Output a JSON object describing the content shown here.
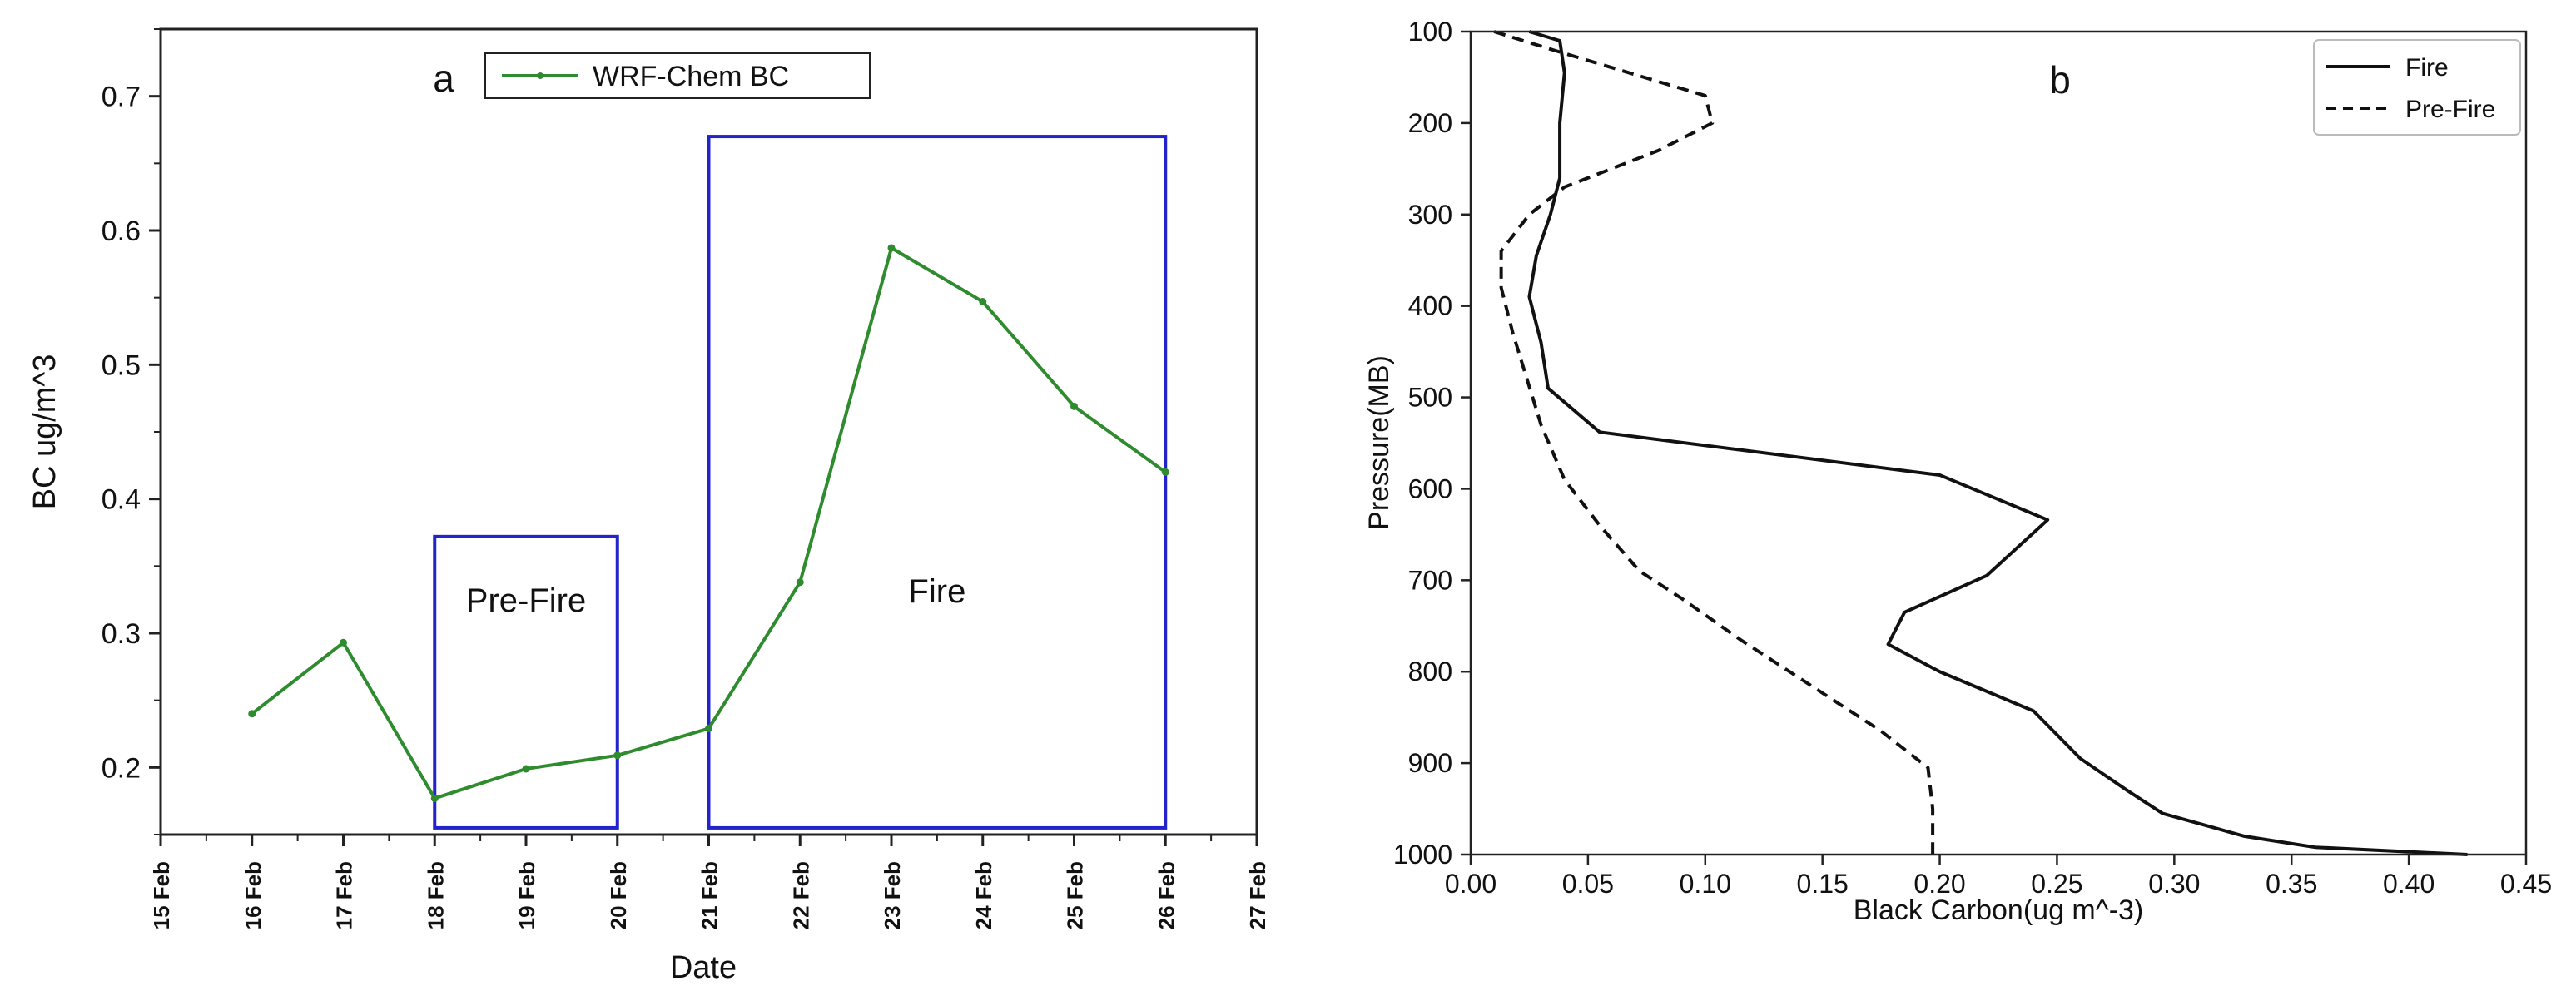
{
  "chart_data": [
    {
      "panel_label": "a",
      "type": "line",
      "xlabel": "Date",
      "ylabel": "BC ug/m^3",
      "ylim": [
        0.15,
        0.75
      ],
      "y_ticks": [
        "0.2",
        "0.3",
        "0.4",
        "0.5",
        "0.6",
        "0.7"
      ],
      "categories": [
        "15 Feb",
        "16 Feb",
        "17 Feb",
        "18 Feb",
        "19 Feb",
        "20 Feb",
        "21 Feb",
        "22 Feb",
        "23 Feb",
        "24 Feb",
        "25 Feb",
        "26 Feb",
        "27 Feb"
      ],
      "series": [
        {
          "name": "WRF-Chem BC",
          "color": "#2e8b2e",
          "x": [
            "16 Feb",
            "17 Feb",
            "18 Feb",
            "19 Feb",
            "20 Feb",
            "21 Feb",
            "22 Feb",
            "23 Feb",
            "24 Feb",
            "25 Feb",
            "26 Feb"
          ],
          "values": [
            0.24,
            0.293,
            0.177,
            0.199,
            0.209,
            0.229,
            0.338,
            0.587,
            0.547,
            0.469,
            0.42
          ]
        }
      ],
      "annotations": [
        {
          "label": "Pre-Fire",
          "x_range": [
            "18 Feb",
            "20 Feb"
          ],
          "y_range": [
            0.155,
            0.372
          ],
          "color": "#2323cc"
        },
        {
          "label": "Fire",
          "x_range": [
            "21 Feb",
            "26 Feb"
          ],
          "y_range": [
            0.155,
            0.67
          ],
          "color": "#2323cc"
        }
      ],
      "legend_position": "top-center",
      "grid": false
    },
    {
      "panel_label": "b",
      "type": "line",
      "xlabel": "Black Carbon(ug m^-3)",
      "ylabel": "Pressure(MB)",
      "xlim": [
        0.0,
        0.45
      ],
      "ylim": [
        1000,
        100
      ],
      "x_ticks": [
        "0.00",
        "0.05",
        "0.10",
        "0.15",
        "0.20",
        "0.25",
        "0.30",
        "0.35",
        "0.40",
        "0.45"
      ],
      "y_ticks": [
        "100",
        "200",
        "300",
        "400",
        "500",
        "600",
        "700",
        "800",
        "900",
        "1000"
      ],
      "y_inverted": true,
      "series": [
        {
          "name": "Fire",
          "style": "solid",
          "points": [
            [
              0.025,
              100
            ],
            [
              0.038,
              110
            ],
            [
              0.04,
              145
            ],
            [
              0.038,
              200
            ],
            [
              0.038,
              260
            ],
            [
              0.034,
              300
            ],
            [
              0.028,
              345
            ],
            [
              0.025,
              390
            ],
            [
              0.03,
              440
            ],
            [
              0.033,
              490
            ],
            [
              0.055,
              538
            ],
            [
              0.2,
              585
            ],
            [
              0.246,
              634
            ],
            [
              0.22,
              695
            ],
            [
              0.185,
              735
            ],
            [
              0.178,
              770
            ],
            [
              0.2,
              800
            ],
            [
              0.24,
              843
            ],
            [
              0.26,
              895
            ],
            [
              0.28,
              930
            ],
            [
              0.295,
              955
            ],
            [
              0.33,
              980
            ],
            [
              0.36,
              992
            ],
            [
              0.425,
              1000
            ]
          ]
        },
        {
          "name": "Pre-Fire",
          "style": "dashed",
          "points": [
            [
              0.01,
              100
            ],
            [
              0.035,
              120
            ],
            [
              0.1,
              170
            ],
            [
              0.103,
              200
            ],
            [
              0.08,
              230
            ],
            [
              0.06,
              250
            ],
            [
              0.04,
              270
            ],
            [
              0.025,
              300
            ],
            [
              0.013,
              340
            ],
            [
              0.013,
              380
            ],
            [
              0.018,
              430
            ],
            [
              0.024,
              480
            ],
            [
              0.03,
              530
            ],
            [
              0.04,
              590
            ],
            [
              0.055,
              640
            ],
            [
              0.072,
              690
            ],
            [
              0.09,
              720
            ],
            [
              0.115,
              765
            ],
            [
              0.145,
              815
            ],
            [
              0.175,
              865
            ],
            [
              0.195,
              905
            ],
            [
              0.197,
              950
            ],
            [
              0.197,
              1000
            ]
          ]
        }
      ],
      "legend_position": "top-right",
      "grid": false
    }
  ]
}
